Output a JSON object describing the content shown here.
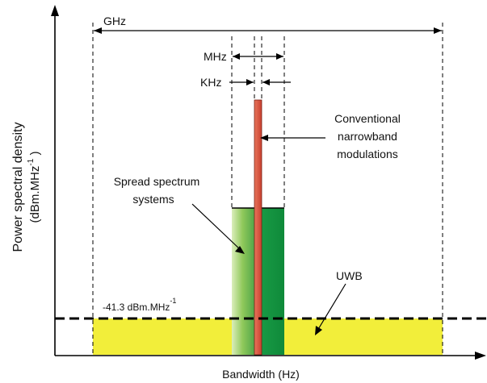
{
  "labels": {
    "ghz": "GHz",
    "mhz": "MHz",
    "khz": "KHz",
    "conventional": [
      "Conventional",
      "narrowband",
      "modulations"
    ],
    "spread": [
      "Spread spectrum",
      "systems"
    ],
    "uwb": "UWB",
    "level": "-41.3 dBm.MHz",
    "level_sup": "-1",
    "y_axis_line1": "Power spectral density",
    "y_axis_line2": "(dBm.MHz",
    "y_axis_sup": "-1",
    "y_axis_close": " )",
    "x_axis": "Bandwidth (Hz)"
  },
  "colors": {
    "uwb_fill": "#f2ee3a",
    "spread_left": "#a6d36a",
    "spread_right": "#149a42",
    "narrowband": "#d9583f",
    "axis": "#000000"
  }
}
